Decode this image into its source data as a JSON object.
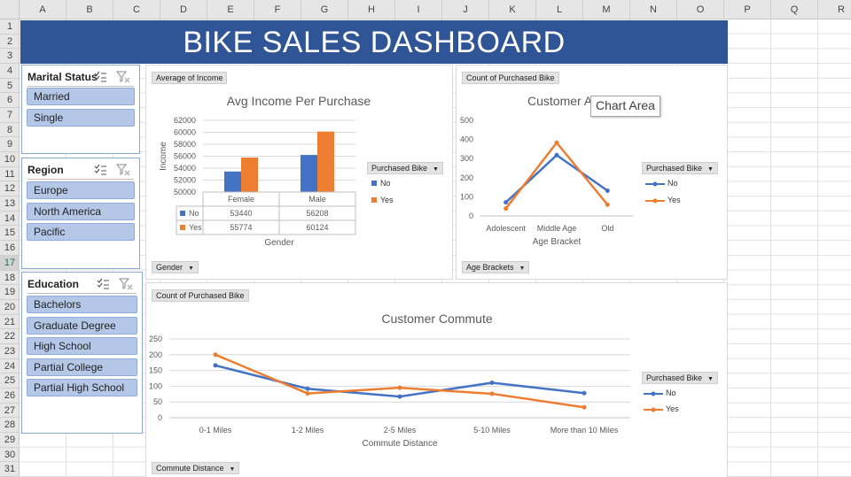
{
  "sheet": {
    "columns": [
      "A",
      "B",
      "C",
      "D",
      "E",
      "F",
      "G",
      "H",
      "I",
      "J",
      "K",
      "L",
      "M",
      "N",
      "O",
      "P",
      "Q",
      "R"
    ],
    "rows": [
      "1",
      "2",
      "3",
      "4",
      "5",
      "6",
      "7",
      "8",
      "9",
      "10",
      "11",
      "12",
      "13",
      "14",
      "15",
      "16",
      "17",
      "18",
      "19",
      "20",
      "21",
      "22",
      "23",
      "24",
      "25",
      "26",
      "27",
      "28",
      "29",
      "30",
      "31"
    ],
    "selected_row": "17"
  },
  "banner": {
    "title": "BIKE SALES DASHBOARD",
    "color": "#2f5597"
  },
  "slicers": [
    {
      "title": "Marital Status",
      "items": [
        "Married",
        "Single"
      ]
    },
    {
      "title": "Region",
      "items": [
        "Europe",
        "North America",
        "Pacific"
      ]
    },
    {
      "title": "Education",
      "items": [
        "Bachelors",
        "Graduate Degree",
        "High School",
        "Partial College",
        "Partial High School"
      ]
    }
  ],
  "colors": {
    "no": "#4472c4",
    "yes": "#ed7d31"
  },
  "income_chart": {
    "value_button": "Average of Income",
    "axis_button": "Gender",
    "legend_button": "Purchased Bike",
    "table_rows": [
      {
        "label": "No",
        "values": [
          "53440",
          "56208"
        ]
      },
      {
        "label": "Yes",
        "values": [
          "55774",
          "60124"
        ]
      }
    ],
    "chart_data": {
      "type": "bar",
      "title": "Avg Income Per Purchase",
      "categories": [
        "Female",
        "Male"
      ],
      "series": [
        {
          "name": "No",
          "values": [
            53440,
            56208
          ]
        },
        {
          "name": "Yes",
          "values": [
            55774,
            60124
          ]
        }
      ],
      "xlabel": "Gender",
      "ylabel": "Income",
      "ylim": [
        50000,
        62000
      ],
      "yticks": [
        "62000",
        "60000",
        "58000",
        "56000",
        "54000",
        "52000",
        "50000"
      ],
      "grid": true,
      "legend": "right"
    }
  },
  "age_chart": {
    "value_button": "Count of Purchased Bike",
    "axis_button": "Age Brackets",
    "legend_button": "Purchased Bike",
    "chart_data": {
      "type": "line",
      "title": "Customer A",
      "categories": [
        "Adolescent",
        "Middle Age",
        "Old"
      ],
      "series": [
        {
          "name": "No",
          "values": [
            71,
            318,
            132
          ]
        },
        {
          "name": "Yes",
          "values": [
            39,
            383,
            59
          ]
        }
      ],
      "xlabel": "Age Bracket",
      "ylabel": "",
      "ylim": [
        0,
        500
      ],
      "yticks": [
        "500",
        "400",
        "300",
        "200",
        "100",
        "0"
      ],
      "grid": false,
      "legend": "right"
    }
  },
  "tooltip": "Chart Area",
  "commute_chart": {
    "value_button": "Count of Purchased Bike",
    "axis_button": "Commute Distance",
    "legend_button": "Purchased Bike",
    "chart_data": {
      "type": "line",
      "title": "Customer Commute",
      "categories": [
        "0-1 Miles",
        "1-2 Miles",
        "2-5 Miles",
        "5-10 Miles",
        "More than 10 Miles"
      ],
      "series": [
        {
          "name": "No",
          "values": [
            166,
            92,
            67,
            111,
            78
          ]
        },
        {
          "name": "Yes",
          "values": [
            200,
            77,
            95,
            76,
            33
          ]
        }
      ],
      "xlabel": "Commute Distance",
      "ylabel": "",
      "ylim": [
        0,
        250
      ],
      "yticks": [
        "250",
        "200",
        "150",
        "100",
        "50",
        "0"
      ],
      "grid": true,
      "legend": "right"
    }
  }
}
